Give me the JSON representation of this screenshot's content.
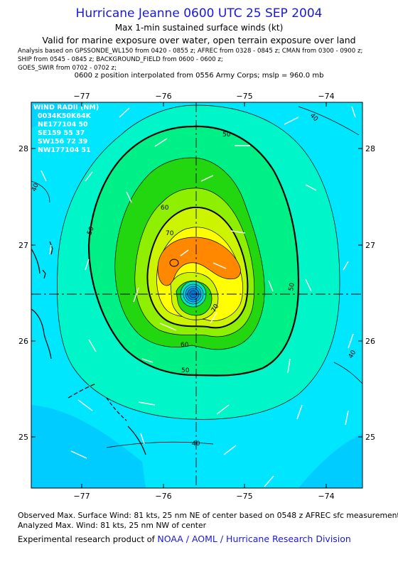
{
  "header": {
    "title": "Hurricane Jeanne 0600 UTC 25 SEP 2004",
    "subtitle": "Max 1-min sustained surface winds (kt)",
    "validity": "Valid for marine exposure over water, open terrain exposure over land",
    "analysis_line1": "Analysis based on  GPSSONDE_WL150 from 0420 - 0855 z;  AFREC from 0328 - 0845 z;  CMAN from 0300 - 0900 z;",
    "analysis_line2": "SHIP from 0545 - 0845 z;  BACKGROUND_FIELD from 0600 - 0600 z;",
    "analysis_line3": "GOES_SWIR from 0702 - 0702 z;",
    "position_note": "0600 z position interpolated from 0556 Army Corps; mslp = 960.0 mb"
  },
  "map": {
    "lon_ticks": [
      "−77",
      "−76",
      "−75",
      "−74"
    ],
    "lat_ticks": [
      "28",
      "27",
      "26",
      "25"
    ],
    "contour_labels": [
      "40",
      "50",
      "60",
      "70",
      "40",
      "50",
      "50",
      "60",
      "70",
      "50",
      "40",
      "40"
    ],
    "wind_radii": {
      "title": "WIND RADII (NM)",
      "header": "0034K50K64K",
      "rows": [
        "NE177104 50",
        "SE159 55 37",
        "SW156 72 39",
        "NW177104 51"
      ]
    },
    "colors": {
      "level_30": "#00e6ff",
      "level_40": "#00f5c8",
      "level_50": "#00f088",
      "level_60": "#22d610",
      "level_65": "#8ef000",
      "level_70": "#ccf400",
      "level_75": "#ffff00",
      "level_80": "#ff8800",
      "eye": "#0077dd",
      "land": "#00b4ee",
      "water_low": "#00d8ff"
    }
  },
  "footer": {
    "observed": "Observed Max. Surface Wind: 81 kts, 25 nm NE of center based on 0548 z AFREC sfc measurement",
    "analyzed": "Analyzed Max. Wind: 81 kts, 25 nm NW of center",
    "credit_prefix": "Experimental research product of ",
    "credit_org": "NOAA / AOML / Hurricane Research Division"
  }
}
